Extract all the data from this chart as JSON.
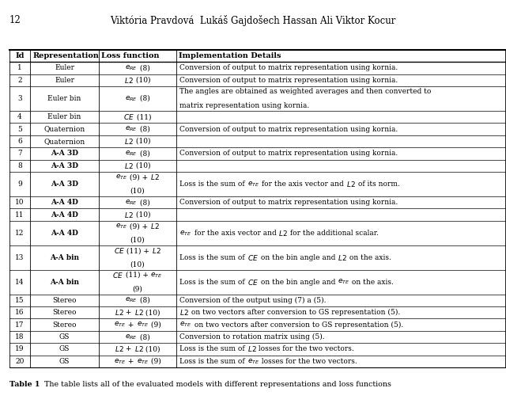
{
  "page_num": "12",
  "authors": "Viktória Pravdová  Lukáš Gajdošech Hassan Ali Viktor Kocur",
  "caption_bold": "Table 1",
  "caption_rest": "  The table lists all of the evaluated models with different representations and loss functions",
  "headers": [
    "Id",
    "Representation",
    "Loss function",
    "Implementation Details"
  ],
  "rows": [
    [
      "1",
      "Euler",
      "e_RE (8)",
      "Conversion of output to matrix representation using kornia."
    ],
    [
      "2",
      "Euler",
      "L2 (10)",
      "Conversion of output to matrix representation using kornia."
    ],
    [
      "3",
      "Euler bin",
      "e_RE (8)",
      "The angles are obtained as weighted averages and then converted to\nmatrix representation using kornia."
    ],
    [
      "4",
      "Euler bin",
      "CE (11)",
      ""
    ],
    [
      "5",
      "Quaternion",
      "e_RE (8)",
      "Conversion of output to matrix representation using kornia."
    ],
    [
      "6",
      "Quaternion",
      "L2 (10)",
      ""
    ],
    [
      "7",
      "A-A 3D",
      "e_RE (8)",
      "Conversion of output to matrix representation using kornia."
    ],
    [
      "8",
      "A-A 3D",
      "L2 (10)",
      ""
    ],
    [
      "9",
      "A-A 3D",
      "e_TE (9) + L2\n(10)",
      "Loss is the sum of e_TE for the axis vector and L2 of its norm."
    ],
    [
      "10",
      "A-A 4D",
      "e_RE (8)",
      "Conversion of output to matrix representation using kornia."
    ],
    [
      "11",
      "A-A 4D",
      "L2 (10)",
      ""
    ],
    [
      "12",
      "A-A 4D",
      "e_TE (9) + L2\n(10)",
      "e_TE for the axis vector and L2 for the additional scalar."
    ],
    [
      "13",
      "A-A bin",
      "CE (11) + L2\n(10)",
      "Loss is the sum of CE on the bin angle and L2 on the axis."
    ],
    [
      "14",
      "A-A bin",
      "CE (11) + e_TE\n(9)",
      "Loss is the sum of CE on the bin angle and e_TE on the axis."
    ],
    [
      "15",
      "Stereo",
      "e_RE (8)",
      "Conversion of the output using (7) a (5)."
    ],
    [
      "16",
      "Stereo",
      "L2 + L2 (10)",
      "L2 on two vectors after conversion to GS representation (5)."
    ],
    [
      "17",
      "Stereo",
      "e_TE + e_TE (9)",
      "e_TE on two vectors after conversion to GS representation (5)."
    ],
    [
      "18",
      "GS",
      "e_RE (8)",
      "Conversion to rotation matrix using (5)."
    ],
    [
      "19",
      "GS",
      "L2 + L2 (10)",
      "Loss is the sum of L2 losses for the two vectors."
    ],
    [
      "20",
      "GS",
      "e_TE + e_TE (9)",
      "Loss is the sum of e_TE losses for the two vectors."
    ]
  ],
  "loss_italic": [
    [
      "$e_{RE}$",
      " (8)"
    ],
    [
      "$L2$",
      " (10)"
    ],
    [
      "$e_{RE}$",
      " (8)"
    ],
    [
      "$CE$",
      " (11)"
    ],
    [
      "$e_{RE}$",
      " (8)"
    ],
    [
      "$L2$",
      " (10)"
    ],
    [
      "$e_{RE}$",
      " (8)"
    ],
    [
      "$L2$",
      " (10)"
    ],
    [
      "$e_{TE}$",
      " (9) + ",
      "$L2$",
      "\n(10)"
    ],
    [
      "$e_{RE}$",
      " (8)"
    ],
    [
      "$L2$",
      " (10)"
    ],
    [
      "$e_{TE}$",
      " (9) + ",
      "$L2$",
      "\n(10)"
    ],
    [
      "$CE$",
      " (11) + ",
      "$L2$",
      "\n(10)"
    ],
    [
      "$CE$",
      " (11) + ",
      "$e_{TE}$",
      "\n(9)"
    ],
    [
      "$e_{RE}$",
      " (8)"
    ],
    [
      "$L2$",
      " + ",
      "$L2$",
      " (10)"
    ],
    [
      "$e_{TE}$",
      " + ",
      "$e_{TE}$",
      " (9)"
    ],
    [
      "$e_{RE}$",
      " (8)"
    ],
    [
      "$L2$",
      " + ",
      "$L2$",
      " (10)"
    ],
    [
      "$e_{TE}$",
      " + ",
      "$e_{TE}$",
      " (9)"
    ]
  ],
  "impl_parts": [
    [
      [
        "Conversion of output to matrix representation using kornia."
      ]
    ],
    [
      [
        "Conversion of output to matrix representation using kornia."
      ]
    ],
    [
      [
        "The angles are obtained as weighted averages and then converted to\nmatrix representation using kornia."
      ]
    ],
    [
      []
    ],
    [
      [
        "Conversion of output to matrix representation using kornia."
      ]
    ],
    [
      []
    ],
    [
      [
        "Conversion of output to matrix representation using kornia."
      ]
    ],
    [
      []
    ],
    [
      [
        "Loss is the sum of ",
        "$e_{TE}$",
        " for the axis vector and ",
        "$L2$",
        " of its norm."
      ]
    ],
    [
      [
        "Conversion of output to matrix representation using kornia."
      ]
    ],
    [
      []
    ],
    [
      [
        "$e_{TE}$",
        " for the axis vector and ",
        "$L2$",
        " for the additional scalar."
      ]
    ],
    [
      [
        "Loss is the sum of ",
        "$CE$",
        " on the bin angle and ",
        "$L2$",
        " on the axis."
      ]
    ],
    [
      [
        "Loss is the sum of ",
        "$CE$",
        " on the bin angle and ",
        "$e_{TE}$",
        " on the axis."
      ]
    ],
    [
      [
        "Conversion of the output using (7) a (5)."
      ]
    ],
    [
      [
        "$L2$",
        " on two vectors after conversion to GS representation (5)."
      ]
    ],
    [
      [
        "$e_{TE}$",
        " on two vectors after conversion to GS representation (5)."
      ]
    ],
    [
      [
        "Conversion to rotation matrix using (5)."
      ]
    ],
    [
      [
        "Loss is the sum of ",
        "$L2$",
        " losses for the two vectors."
      ]
    ],
    [
      [
        "Loss is the sum of ",
        "$e_{TE}$",
        " losses for the two vectors."
      ]
    ]
  ],
  "figsize": [
    6.4,
    5.14
  ],
  "dpi": 100
}
